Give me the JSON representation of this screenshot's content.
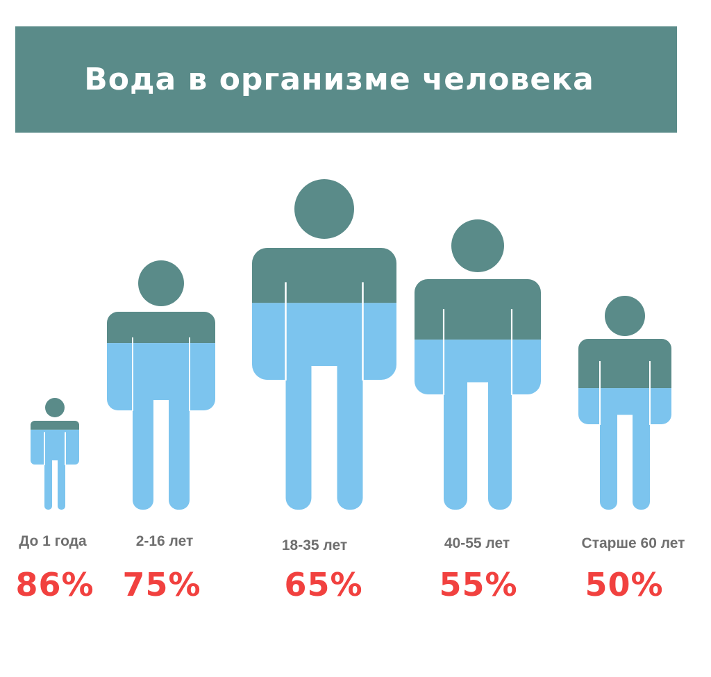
{
  "header": {
    "title": "Вода в организме человека"
  },
  "colors": {
    "banner": "#5a8b89",
    "body_dry": "#5a8b89",
    "water": "#7cc4ee",
    "percent_text": "#f1413f",
    "age_text": "#6f6f6f"
  },
  "chart_data": {
    "type": "bar",
    "title": "Вода в организме человека",
    "xlabel": "",
    "ylabel": "",
    "categories": [
      "До 1 года",
      "2-16 лет",
      "18-35 лет",
      "40-55 лет",
      "Старше 60 лет"
    ],
    "values": [
      86,
      75,
      65,
      55,
      50
    ],
    "value_labels": [
      "86%",
      "75%",
      "65%",
      "55%",
      "50%"
    ],
    "unit": "%",
    "ylim": [
      0,
      100
    ],
    "grid": false,
    "legend": "none"
  }
}
